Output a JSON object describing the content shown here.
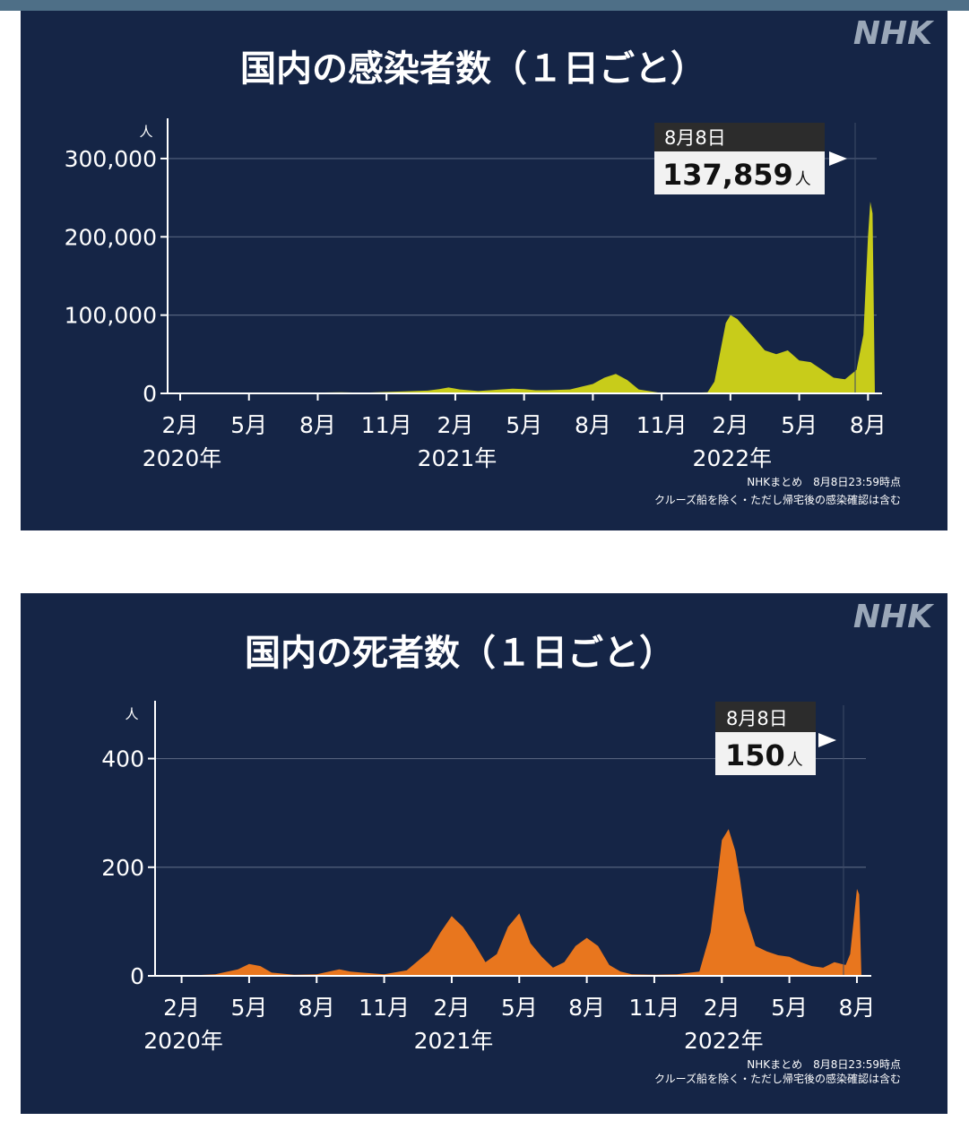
{
  "chart_data": [
    {
      "type": "area",
      "title": "国内の感染者数（１日ごと）",
      "logo": "NHK",
      "y_unit": "人",
      "ylim": [
        0,
        340000
      ],
      "yticks": [
        0,
        100000,
        200000,
        300000
      ],
      "ytick_labels": [
        "0",
        "100,000",
        "200,000",
        "300,000"
      ],
      "xlim": [
        0,
        30.3
      ],
      "xticks": [
        {
          "pos": 0,
          "label": "2月"
        },
        {
          "pos": 3,
          "label": "5月"
        },
        {
          "pos": 6,
          "label": "8月"
        },
        {
          "pos": 9,
          "label": "11月"
        },
        {
          "pos": 12,
          "label": "2月"
        },
        {
          "pos": 15,
          "label": "5月"
        },
        {
          "pos": 18,
          "label": "8月"
        },
        {
          "pos": 21,
          "label": "11月"
        },
        {
          "pos": 24,
          "label": "2月"
        },
        {
          "pos": 27,
          "label": "5月"
        },
        {
          "pos": 30,
          "label": "8月"
        }
      ],
      "year_labels": [
        {
          "pos": 0,
          "label": "2020年"
        },
        {
          "pos": 12,
          "label": "2021年"
        },
        {
          "pos": 24,
          "label": "2022年"
        }
      ],
      "grid": true,
      "color": "#c8cc1a",
      "series": [
        {
          "x": [
            0,
            2,
            3,
            4.5,
            5.5,
            6.3,
            7,
            8,
            9,
            9.8,
            10.8,
            11.3,
            11.7,
            12.2,
            13,
            14,
            14.5,
            15,
            15.5,
            16,
            17,
            18,
            18.5,
            19,
            19.5,
            20,
            21,
            22,
            23,
            23.3,
            23.5,
            23.8,
            24,
            24.3,
            24.6,
            25,
            25.5,
            26,
            26.5,
            27,
            27.5,
            28,
            28.5,
            29,
            29.5,
            29.8,
            30,
            30.1,
            30.2,
            30.3
          ],
          "y": [
            0,
            0,
            600,
            300,
            200,
            1200,
            1500,
            800,
            1800,
            2500,
            3500,
            5500,
            7500,
            5000,
            3000,
            5000,
            6000,
            5500,
            4000,
            4000,
            5000,
            12000,
            20000,
            25000,
            17000,
            5000,
            500,
            200,
            1500,
            15000,
            45000,
            90000,
            100000,
            95000,
            85000,
            72000,
            55000,
            50000,
            55000,
            42000,
            40000,
            30000,
            20000,
            18000,
            30000,
            75000,
            200000,
            245000,
            230000,
            0
          ]
        }
      ],
      "callout": {
        "date": "8月8日",
        "value": "137,859",
        "unit": "人"
      },
      "notes": [
        "NHKまとめ　8月8日23:59時点",
        "クルーズ船を除く・ただし帰宅後の感染確認は含む"
      ]
    },
    {
      "type": "area",
      "title": "国内の死者数（１日ごと）",
      "logo": "NHK",
      "y_unit": "人",
      "ylim": [
        0,
        490
      ],
      "yticks": [
        0,
        200,
        400
      ],
      "ytick_labels": [
        "0",
        "200",
        "400"
      ],
      "xlim": [
        -0.7,
        30.4
      ],
      "xticks": [
        {
          "pos": 0,
          "label": "2月"
        },
        {
          "pos": 3,
          "label": "5月"
        },
        {
          "pos": 6,
          "label": "8月"
        },
        {
          "pos": 9,
          "label": "11月"
        },
        {
          "pos": 12,
          "label": "2月"
        },
        {
          "pos": 15,
          "label": "5月"
        },
        {
          "pos": 18,
          "label": "8月"
        },
        {
          "pos": 21,
          "label": "11月"
        },
        {
          "pos": 24,
          "label": "2月"
        },
        {
          "pos": 27,
          "label": "5月"
        },
        {
          "pos": 30,
          "label": "8月"
        }
      ],
      "year_labels": [
        {
          "pos": 0,
          "label": "2020年"
        },
        {
          "pos": 12,
          "label": "2021年"
        },
        {
          "pos": 24,
          "label": "2022年"
        }
      ],
      "grid": true,
      "color": "#e8761e",
      "series": [
        {
          "x": [
            0,
            1.5,
            2.5,
            3,
            3.5,
            4,
            5,
            6,
            7,
            7.5,
            8,
            9,
            10,
            11,
            11.5,
            12,
            12.5,
            13,
            13.5,
            14,
            14.5,
            15,
            15.5,
            16,
            16.5,
            17,
            17.5,
            18,
            18.5,
            19,
            19.5,
            20,
            21,
            22,
            23,
            23.5,
            23.8,
            24,
            24.3,
            24.6,
            24.8,
            25,
            25.5,
            26,
            26.5,
            27,
            27.5,
            28,
            28.5,
            29,
            29.5,
            29.7,
            30,
            30.1,
            30.2,
            30.3
          ],
          "y": [
            0,
            3,
            12,
            22,
            18,
            6,
            2,
            3,
            12,
            8,
            6,
            3,
            10,
            45,
            80,
            110,
            90,
            60,
            25,
            40,
            90,
            115,
            60,
            35,
            15,
            25,
            55,
            70,
            55,
            20,
            8,
            3,
            2,
            3,
            8,
            80,
            180,
            250,
            270,
            230,
            180,
            120,
            55,
            45,
            38,
            35,
            25,
            18,
            15,
            25,
            20,
            40,
            160,
            150,
            0,
            0
          ]
        }
      ],
      "callout": {
        "date": "8月8日",
        "value": "150",
        "unit": "人"
      },
      "notes": [
        "NHKまとめ　8月8日23:59時点",
        "クルーズ船を除く・ただし帰宅後の感染確認は含む"
      ]
    }
  ]
}
